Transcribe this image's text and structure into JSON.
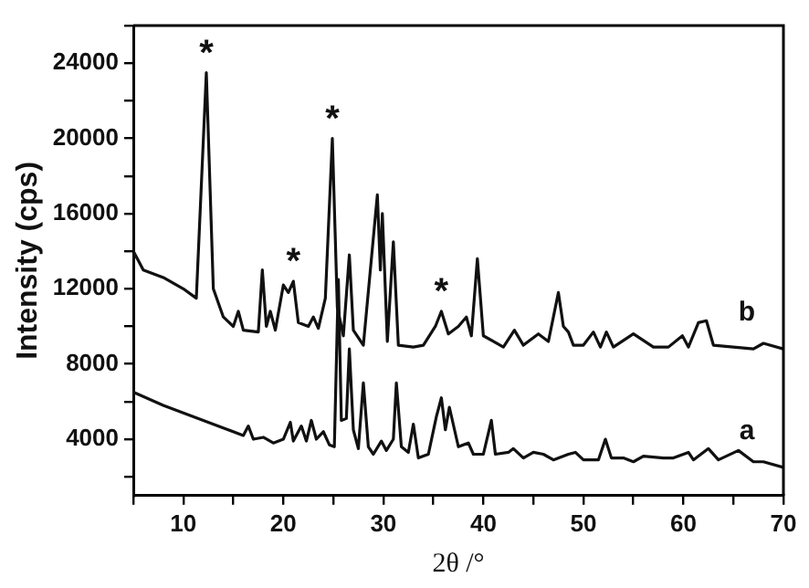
{
  "chart_data": {
    "type": "line",
    "xlabel": "2θ /°",
    "ylabel": "Intensity (cps)",
    "xlim": [
      5,
      70
    ],
    "ylim": [
      1000,
      26000
    ],
    "xticks": [
      {
        "value": 5,
        "label": null
      },
      10,
      {
        "value": 15,
        "label": null
      },
      20,
      {
        "value": 25,
        "label": null
      },
      30,
      {
        "value": 35,
        "label": null
      },
      40,
      {
        "value": 45,
        "label": null
      },
      50,
      {
        "value": 55,
        "label": null
      },
      60,
      {
        "value": 65,
        "label": null
      },
      70
    ],
    "yticks": [
      {
        "value": 2000,
        "label": null
      },
      4000,
      {
        "value": 6000,
        "label": null
      },
      8000,
      {
        "value": 10000,
        "label": null
      },
      12000,
      {
        "value": 14000,
        "label": null
      },
      16000,
      {
        "value": 18000,
        "label": null
      },
      20000,
      {
        "value": 22000,
        "label": null
      },
      24000,
      {
        "value": 26000,
        "label": null
      }
    ],
    "grid": false,
    "legend": false,
    "marker": "none",
    "line_style": "solid",
    "series": [
      {
        "name": "b",
        "color": "#111111",
        "x": [
          5,
          6,
          8,
          10,
          11.3,
          12.3,
          13,
          14,
          15,
          15.5,
          16,
          17.5,
          17.9,
          18.3,
          18.7,
          19.2,
          20,
          20.5,
          21,
          21.5,
          22.5,
          23,
          23.5,
          24.2,
          24.9,
          25.4,
          26,
          26.6,
          27,
          28,
          29.4,
          29.7,
          29.9,
          30.4,
          31,
          31.5,
          33,
          34,
          35.2,
          35.8,
          36.5,
          37.5,
          38.3,
          38.8,
          39.4,
          40,
          41,
          42,
          43.1,
          44,
          45.5,
          46.5,
          47.5,
          48,
          48.5,
          49,
          50,
          51,
          51.7,
          52.3,
          53,
          55,
          57,
          58.5,
          59.9,
          60.5,
          61.5,
          62.3,
          63,
          65,
          67,
          68,
          70
        ],
        "values": [
          14000,
          13000,
          12600,
          12000,
          11500,
          23500,
          12000,
          10500,
          10000,
          10800,
          9800,
          9700,
          13000,
          10000,
          10800,
          9800,
          12200,
          11800,
          12400,
          10200,
          10000,
          10500,
          9900,
          11500,
          20000,
          11000,
          9500,
          13800,
          9800,
          9000,
          17000,
          13000,
          16000,
          9200,
          14500,
          9000,
          8900,
          9000,
          10000,
          10800,
          9600,
          10000,
          10500,
          9500,
          13600,
          9500,
          9200,
          8900,
          9800,
          9000,
          9600,
          9200,
          11800,
          10000,
          9700,
          9000,
          9000,
          9700,
          8900,
          9700,
          8900,
          9600,
          8900,
          8900,
          9500,
          8900,
          10200,
          10300,
          9000,
          8900,
          8800,
          9100,
          8800
        ]
      },
      {
        "name": "a",
        "color": "#111111",
        "x": [
          5,
          8,
          10,
          12,
          14,
          16,
          16.5,
          17,
          18,
          19,
          20,
          20.7,
          21,
          21.8,
          22.3,
          22.8,
          23.3,
          24,
          24.6,
          25.1,
          25.5,
          25.8,
          26.3,
          26.6,
          27,
          27.5,
          28,
          28.5,
          29,
          29.8,
          30.3,
          31,
          31.3,
          31.8,
          32.5,
          33,
          33.5,
          34.5,
          35.3,
          35.8,
          36.2,
          36.6,
          37.5,
          38.5,
          39,
          40,
          40.8,
          41.2,
          42.5,
          43,
          44,
          45,
          46,
          47,
          48.5,
          49.2,
          50,
          51.5,
          52.2,
          52.8,
          54,
          55,
          56,
          58,
          59,
          60.5,
          61,
          62.5,
          63.5,
          65.5,
          67,
          68,
          70
        ],
        "values": [
          6500,
          5800,
          5400,
          5000,
          4600,
          4200,
          4700,
          4000,
          4100,
          3800,
          4000,
          4900,
          3900,
          4700,
          3900,
          5000,
          4000,
          4400,
          3700,
          3600,
          12500,
          5000,
          5100,
          8800,
          4500,
          3500,
          7000,
          3600,
          3200,
          3900,
          3400,
          4000,
          7000,
          3600,
          3300,
          4800,
          3000,
          3200,
          5200,
          6200,
          4500,
          5700,
          3600,
          3800,
          3200,
          3200,
          5000,
          3200,
          3300,
          3500,
          3000,
          3300,
          3200,
          2900,
          3200,
          3300,
          2900,
          2900,
          4000,
          3000,
          3000,
          2800,
          3100,
          3000,
          3000,
          3300,
          2900,
          3500,
          2900,
          3400,
          2800,
          2800,
          2500
        ]
      }
    ],
    "annotations": [
      {
        "text": "*",
        "x": 12.3,
        "y": 23500
      },
      {
        "text": "*",
        "x": 21,
        "y": 12400
      },
      {
        "text": "*",
        "x": 24.9,
        "y": 20000
      },
      {
        "text": "*",
        "x": 35.8,
        "y": 10800
      }
    ]
  }
}
